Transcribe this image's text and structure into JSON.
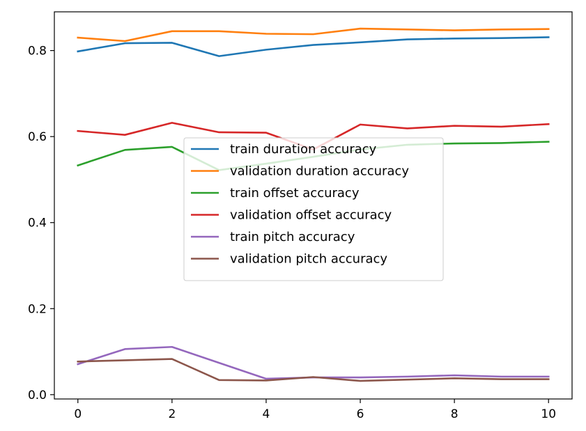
{
  "chart_data": {
    "type": "line",
    "title": "",
    "xlabel": "",
    "ylabel": "",
    "x": [
      0,
      1,
      2,
      3,
      4,
      5,
      6,
      7,
      8,
      9,
      10
    ],
    "xlim": [
      -0.5,
      10.5
    ],
    "ylim": [
      -0.01,
      0.89
    ],
    "xticks": [
      0,
      2,
      4,
      6,
      8,
      10
    ],
    "yticks": [
      0.0,
      0.2,
      0.4,
      0.6,
      0.8
    ],
    "ytick_labels": [
      "0.0",
      "0.2",
      "0.4",
      "0.6",
      "0.8"
    ],
    "grid": false,
    "legend_placement": "center",
    "series": [
      {
        "name": "train duration accuracy",
        "color": "#1f77b4",
        "values": [
          0.798,
          0.817,
          0.818,
          0.787,
          0.802,
          0.813,
          0.819,
          0.826,
          0.828,
          0.829,
          0.831
        ]
      },
      {
        "name": "validation duration accuracy",
        "color": "#ff7f0e",
        "values": [
          0.83,
          0.822,
          0.845,
          0.845,
          0.839,
          0.838,
          0.851,
          0.849,
          0.847,
          0.849,
          0.85
        ]
      },
      {
        "name": "train offset accuracy",
        "color": "#2ca02c",
        "values": [
          0.533,
          0.569,
          0.576,
          0.522,
          0.537,
          0.553,
          0.57,
          0.581,
          0.584,
          0.585,
          0.588
        ]
      },
      {
        "name": "validation offset accuracy",
        "color": "#d62728",
        "values": [
          0.613,
          0.604,
          0.632,
          0.61,
          0.609,
          0.57,
          0.628,
          0.619,
          0.625,
          0.623,
          0.629
        ]
      },
      {
        "name": "train pitch accuracy",
        "color": "#9467bd",
        "values": [
          0.071,
          0.106,
          0.111,
          0.074,
          0.037,
          0.04,
          0.04,
          0.042,
          0.045,
          0.042,
          0.042
        ]
      },
      {
        "name": "validation pitch accuracy",
        "color": "#8c564b",
        "values": [
          0.077,
          0.08,
          0.083,
          0.034,
          0.033,
          0.041,
          0.032,
          0.035,
          0.038,
          0.036,
          0.036
        ]
      }
    ]
  }
}
